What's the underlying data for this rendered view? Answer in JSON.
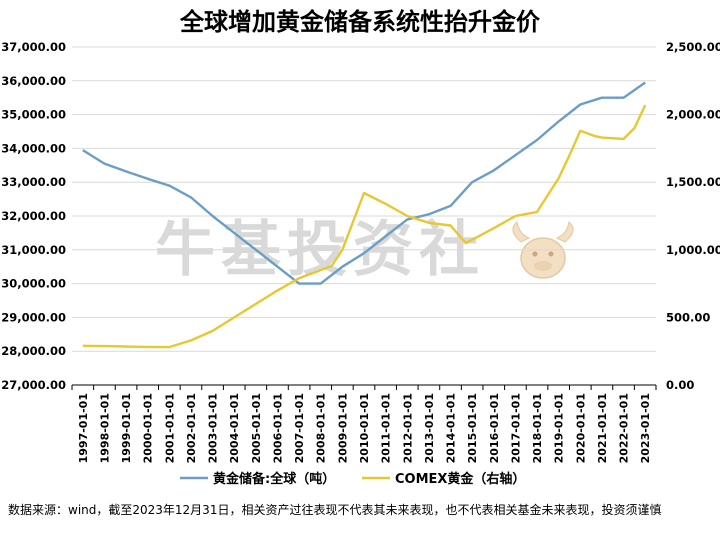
{
  "chart_data": {
    "type": "line",
    "title": "全球增加黄金储备系统性抬升金价",
    "categories": [
      "1997-01-01",
      "1998-01-01",
      "1999-01-01",
      "2000-01-01",
      "2001-01-01",
      "2002-01-01",
      "2003-01-01",
      "2004-01-01",
      "2005-01-01",
      "2006-01-01",
      "2007-01-01",
      "2008-01-01",
      "2009-01-01",
      "2010-01-01",
      "2011-01-01",
      "2012-01-01",
      "2013-01-01",
      "2014-01-01",
      "2015-01-01",
      "2016-01-01",
      "2017-01-01",
      "2018-01-01",
      "2019-01-01",
      "2020-01-01",
      "2021-01-01",
      "2022-01-01",
      "2023-01-01"
    ],
    "y_left": {
      "ylim": [
        27000,
        37000
      ],
      "ticks": [
        "27,000.00",
        "28,000.00",
        "29,000.00",
        "30,000.00",
        "31,000.00",
        "32,000.00",
        "33,000.00",
        "34,000.00",
        "35,000.00",
        "36,000.00",
        "37,000.00"
      ]
    },
    "y_right": {
      "ylim": [
        0,
        2500
      ],
      "ticks": [
        "0.00",
        "500.00",
        "1,000.00",
        "1,500.00",
        "2,000.00",
        "2,500.00"
      ]
    },
    "series": [
      {
        "name": "黄金储备:全球（吨）",
        "axis": "left",
        "color": "#6b9ec7",
        "x": [
          0,
          1,
          2,
          3,
          4,
          5,
          6,
          7,
          8,
          9,
          10,
          11,
          12,
          13,
          14,
          15,
          16,
          17,
          18,
          19,
          20,
          21,
          22,
          23,
          24,
          25,
          26
        ],
        "values": [
          33950,
          33550,
          33320,
          33100,
          32900,
          32550,
          32000,
          31500,
          31000,
          30500,
          30000,
          30000,
          30500,
          30900,
          31400,
          31900,
          32050,
          32300,
          33000,
          33350,
          33800,
          34250,
          34800,
          35300,
          35500,
          35500,
          35950
        ]
      },
      {
        "name": "COMEX黄金（右轴）",
        "axis": "right",
        "color": "#e8c830",
        "x": [
          0,
          1,
          2,
          3,
          4,
          5,
          6,
          7,
          8,
          9,
          10,
          10.5,
          11,
          11.5,
          12,
          13,
          14,
          15,
          16,
          17,
          17.7,
          18.3,
          19,
          20,
          21,
          22,
          22.5,
          23,
          23.7,
          24,
          25,
          25.5,
          26
        ],
        "values": [
          290,
          288,
          285,
          282,
          280,
          330,
          400,
          500,
          600,
          700,
          790,
          820,
          850,
          880,
          1000,
          1420,
          1340,
          1250,
          1200,
          1180,
          1050,
          1100,
          1160,
          1250,
          1280,
          1530,
          1700,
          1880,
          1840,
          1830,
          1820,
          1900,
          2070
        ]
      }
    ]
  },
  "watermark": "牛基投资社",
  "footnote": "数据来源：wind，截至2023年12月31日，相关资产过往表现不代表其未来表现，也不代表相关基金未来表现，投资须谨慎",
  "colors": {
    "grid": "#d9d9d9",
    "axis": "#000000"
  }
}
